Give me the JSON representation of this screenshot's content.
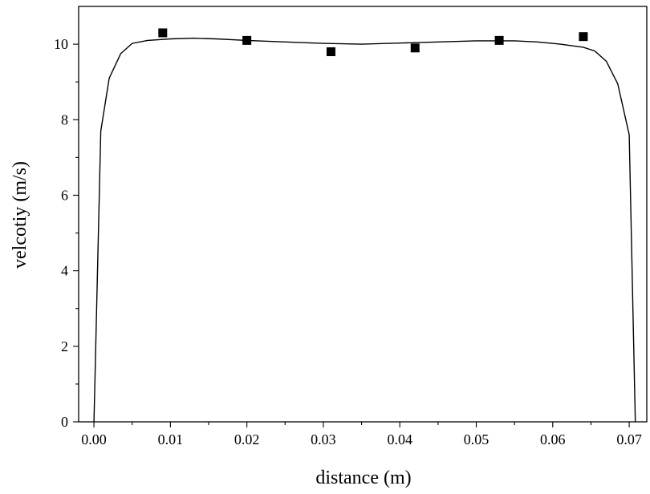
{
  "chart_data": {
    "type": "line",
    "title": "",
    "xlabel": "distance (m)",
    "ylabel": "velcotiy (m/s)",
    "xlim": [
      -0.002,
      0.0723
    ],
    "ylim": [
      0,
      11
    ],
    "x_ticks": [
      0.0,
      0.01,
      0.02,
      0.03,
      0.04,
      0.05,
      0.06,
      0.07
    ],
    "x_tick_labels": [
      "0.00",
      "0.01",
      "0.02",
      "0.03",
      "0.04",
      "0.05",
      "0.06",
      "0.07"
    ],
    "y_ticks": [
      0,
      2,
      4,
      6,
      8,
      10
    ],
    "y_tick_labels": [
      "0",
      "2",
      "4",
      "6",
      "8",
      "10"
    ],
    "grid": false,
    "series": [
      {
        "kind": "line",
        "x": [
          0.0,
          0.0009,
          0.002,
          0.0035,
          0.005,
          0.007,
          0.01,
          0.013,
          0.016,
          0.02,
          0.025,
          0.03,
          0.035,
          0.04,
          0.045,
          0.05,
          0.055,
          0.058,
          0.061,
          0.064,
          0.0655,
          0.067,
          0.0685,
          0.07,
          0.0708
        ],
        "y": [
          0.0,
          7.7,
          9.1,
          9.75,
          10.02,
          10.1,
          10.14,
          10.16,
          10.14,
          10.1,
          10.06,
          10.02,
          10.0,
          10.03,
          10.06,
          10.09,
          10.09,
          10.06,
          10.0,
          9.92,
          9.82,
          9.55,
          8.95,
          7.6,
          0.0
        ]
      },
      {
        "kind": "scatter",
        "marker": "square",
        "x": [
          0.009,
          0.02,
          0.031,
          0.042,
          0.053,
          0.064
        ],
        "y": [
          10.3,
          10.1,
          9.8,
          9.9,
          10.1,
          10.2
        ]
      }
    ]
  }
}
